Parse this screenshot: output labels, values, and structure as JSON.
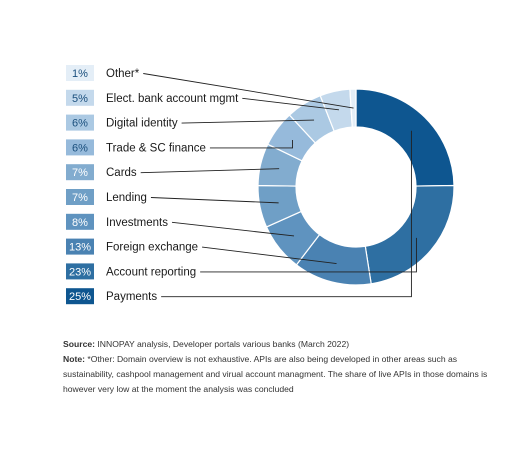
{
  "chart_data": {
    "type": "pie",
    "title": "",
    "categories": [
      "Payments",
      "Account reporting",
      "Foreign exchange",
      "Investments",
      "Lending",
      "Cards",
      "Trade & SC finance",
      "Digital identity",
      "Elect. bank account mgmt",
      "Other*"
    ],
    "values": [
      25,
      23,
      13,
      8,
      7,
      7,
      6,
      6,
      5,
      1
    ],
    "value_labels": [
      "25%",
      "23%",
      "13%",
      "8%",
      "7%",
      "7%",
      "6%",
      "6%",
      "5%",
      "1%"
    ],
    "colors": [
      "#0e5690",
      "#2e6fa2",
      "#4a82b2",
      "#5f93bf",
      "#6f9fc6",
      "#82accf",
      "#96badb",
      "#abc9e3",
      "#c4d9ec",
      "#e4eef7"
    ],
    "legend_text_colors": [
      "#ffffff",
      "#ffffff",
      "#ffffff",
      "#ffffff",
      "#ffffff",
      "#ffffff",
      "#1a4f7d",
      "#1a4f7d",
      "#1a4f7d",
      "#1a4f7d"
    ],
    "donut": true,
    "legend_placement": "left"
  },
  "notes": {
    "source_label": "Source:",
    "source_text": " INNOPAY analysis, Developer portals various banks (March 2022)",
    "note_label": "Note:",
    "note_text": " *Other: Domain overview is not exhaustive. APIs are also being developed in other areas such as sustainability, cashpool management and virual account managment. The share of live APIs in those domains is however very low at the moment the analysis was concluded"
  }
}
